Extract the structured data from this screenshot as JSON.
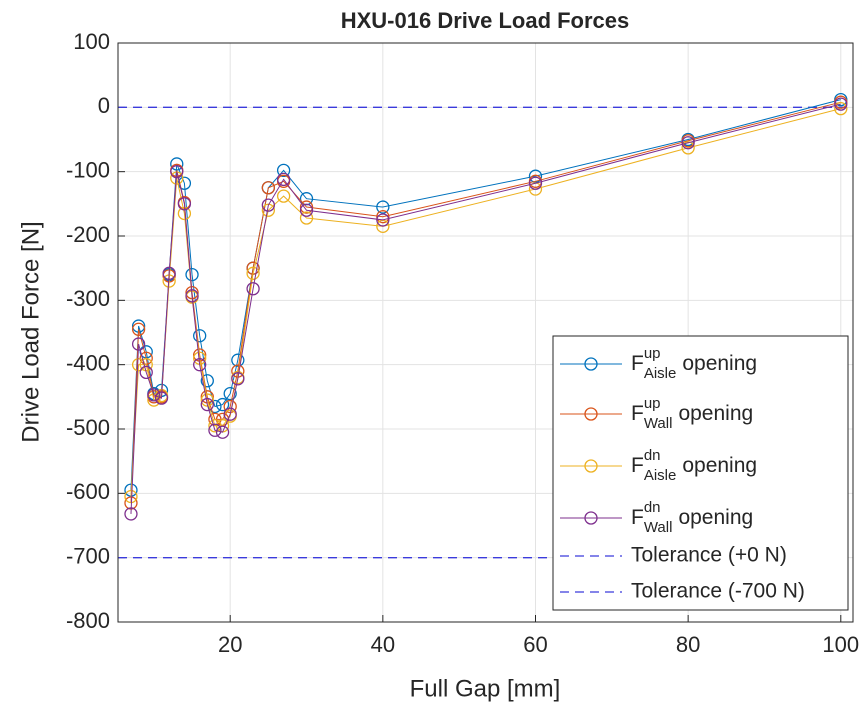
{
  "chart_data": {
    "type": "line",
    "title": "HXU-016 Drive Load Forces",
    "xlabel": "Full Gap [mm]",
    "ylabel": "Drive Load Force [N]",
    "x": [
      7,
      8,
      9,
      10,
      11,
      12,
      13,
      14,
      15,
      16,
      17,
      18,
      19,
      20,
      21,
      23,
      25,
      27,
      30,
      40,
      60,
      80,
      100
    ],
    "series": [
      {
        "name": "F",
        "superscript": "up",
        "subscript": "Aisle",
        "suffix": "opening",
        "color": "#0072bd",
        "values": [
          -595,
          -340,
          -380,
          -445,
          -440,
          -260,
          -88,
          -118,
          -260,
          -355,
          -425,
          -465,
          -462,
          -445,
          -393,
          -250,
          -125,
          -98,
          -142,
          -155,
          -107,
          -50,
          12
        ]
      },
      {
        "name": "F",
        "superscript": "up",
        "subscript": "Wall",
        "suffix": "opening",
        "color": "#d95319",
        "values": [
          -615,
          -345,
          -390,
          -450,
          -450,
          -262,
          -98,
          -148,
          -288,
          -385,
          -450,
          -485,
          -485,
          -465,
          -410,
          -250,
          -125,
          -115,
          -155,
          -170,
          -115,
          -52,
          8
        ]
      },
      {
        "name": "F",
        "superscript": "dn",
        "subscript": "Aisle",
        "suffix": "opening",
        "color": "#edb120",
        "values": [
          -605,
          -400,
          -400,
          -455,
          -448,
          -270,
          -110,
          -165,
          -295,
          -390,
          -455,
          -495,
          -495,
          -480,
          -420,
          -258,
          -160,
          -138,
          -172,
          -185,
          -127,
          -63,
          -2
        ]
      },
      {
        "name": "F",
        "superscript": "dn",
        "subscript": "Wall",
        "suffix": "opening",
        "color": "#7e2f8e",
        "values": [
          -632,
          -368,
          -412,
          -447,
          -452,
          -258,
          -100,
          -150,
          -293,
          -400,
          -462,
          -502,
          -505,
          -477,
          -422,
          -282,
          -152,
          -112,
          -160,
          -175,
          -118,
          -55,
          5
        ]
      }
    ],
    "reference_lines": [
      {
        "name": "Tolerance (+0 N)",
        "value": 0,
        "color": "#3b3bdc"
      },
      {
        "name": "Tolerance (-700 N)",
        "value": -700,
        "color": "#3b3bdc"
      }
    ],
    "xlim": [
      5.3,
      101.6
    ],
    "xticks": [
      20,
      40,
      60,
      80,
      100
    ],
    "ylim": [
      -800,
      100
    ],
    "yticks": [
      -800,
      -700,
      -600,
      -500,
      -400,
      -300,
      -200,
      -100,
      0,
      100
    ],
    "grid": true,
    "legend": "lower right"
  }
}
